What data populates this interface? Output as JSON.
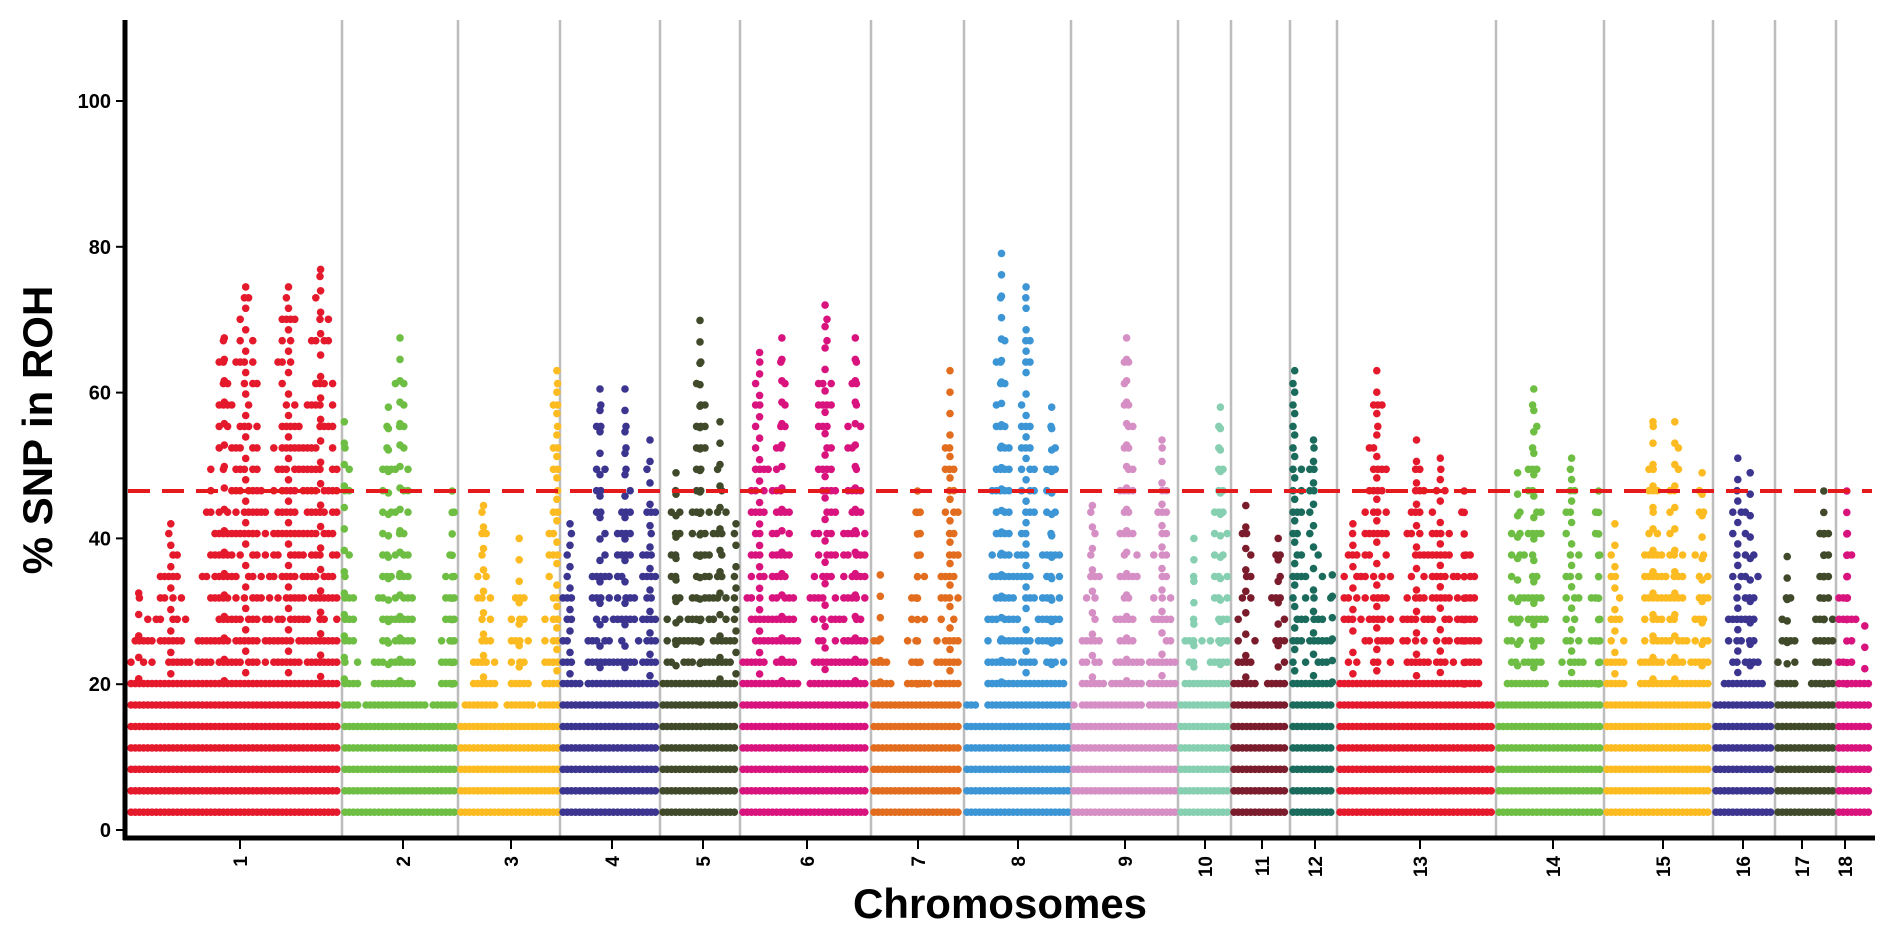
{
  "chart_data": {
    "type": "scatter",
    "title": "",
    "xlabel": "Chromosomes",
    "ylabel": "% SNP in ROH",
    "ylim": [
      0,
      110
    ],
    "yticks": [
      0,
      20,
      40,
      60,
      80,
      100
    ],
    "grid": "vertical chromosome separators only",
    "threshold": {
      "value": 46.5,
      "style": "dashed",
      "color": "#e41a1c"
    },
    "series": [
      {
        "name": "1",
        "color": "#e41a2c",
        "peaks": [
          {
            "pos": 0.05,
            "value": 32.5
          },
          {
            "pos": 0.2,
            "value": 42
          },
          {
            "pos": 0.45,
            "value": 67.5
          },
          {
            "pos": 0.55,
            "value": 74.5
          },
          {
            "pos": 0.75,
            "value": 74.5
          },
          {
            "pos": 0.9,
            "value": 76.9
          }
        ]
      },
      {
        "name": "2",
        "color": "#6fbe44",
        "peaks": [
          {
            "pos": 0.02,
            "value": 56
          },
          {
            "pos": 0.4,
            "value": 58
          },
          {
            "pos": 0.5,
            "value": 67.5
          },
          {
            "pos": 0.95,
            "value": 46.5
          }
        ]
      },
      {
        "name": "3",
        "color": "#fbbb21",
        "peaks": [
          {
            "pos": 0.25,
            "value": 44.5
          },
          {
            "pos": 0.6,
            "value": 40
          },
          {
            "pos": 0.97,
            "value": 63
          }
        ]
      },
      {
        "name": "4",
        "color": "#3b3590",
        "peaks": [
          {
            "pos": 0.1,
            "value": 42
          },
          {
            "pos": 0.4,
            "value": 60.5
          },
          {
            "pos": 0.65,
            "value": 60.5
          },
          {
            "pos": 0.9,
            "value": 53.5
          }
        ]
      },
      {
        "name": "5",
        "color": "#404a2a",
        "peaks": [
          {
            "pos": 0.2,
            "value": 49
          },
          {
            "pos": 0.5,
            "value": 69.9
          },
          {
            "pos": 0.75,
            "value": 56
          },
          {
            "pos": 0.95,
            "value": 42
          }
        ]
      },
      {
        "name": "6",
        "color": "#d9137e",
        "peaks": [
          {
            "pos": 0.15,
            "value": 65.5
          },
          {
            "pos": 0.32,
            "value": 67.5
          },
          {
            "pos": 0.65,
            "value": 72
          },
          {
            "pos": 0.88,
            "value": 67.5
          }
        ]
      },
      {
        "name": "7",
        "color": "#e26d1e",
        "peaks": [
          {
            "pos": 0.1,
            "value": 35
          },
          {
            "pos": 0.5,
            "value": 46.5
          },
          {
            "pos": 0.85,
            "value": 63
          }
        ]
      },
      {
        "name": "8",
        "color": "#3c95d4",
        "peaks": [
          {
            "pos": 0.35,
            "value": 79.1
          },
          {
            "pos": 0.58,
            "value": 74.5
          },
          {
            "pos": 0.82,
            "value": 58
          }
        ]
      },
      {
        "name": "9",
        "color": "#d68fc4",
        "peaks": [
          {
            "pos": 0.2,
            "value": 44.5
          },
          {
            "pos": 0.52,
            "value": 67.5
          },
          {
            "pos": 0.85,
            "value": 53.5
          }
        ]
      },
      {
        "name": "10",
        "color": "#86cfb1",
        "peaks": [
          {
            "pos": 0.3,
            "value": 40
          },
          {
            "pos": 0.8,
            "value": 58
          }
        ]
      },
      {
        "name": "11",
        "color": "#7a1c2c",
        "peaks": [
          {
            "pos": 0.25,
            "value": 44.5
          },
          {
            "pos": 0.8,
            "value": 40
          }
        ]
      },
      {
        "name": "12",
        "color": "#1a6b5c",
        "peaks": [
          {
            "pos": 0.1,
            "value": 63
          },
          {
            "pos": 0.5,
            "value": 53.5
          },
          {
            "pos": 0.9,
            "value": 35
          }
        ]
      },
      {
        "name": "13",
        "color": "#e41a2c",
        "peaks": [
          {
            "pos": 0.1,
            "value": 42
          },
          {
            "pos": 0.25,
            "value": 63
          },
          {
            "pos": 0.5,
            "value": 53.5
          },
          {
            "pos": 0.65,
            "value": 51
          },
          {
            "pos": 0.8,
            "value": 46.5
          }
        ]
      },
      {
        "name": "14",
        "color": "#6fbe44",
        "peaks": [
          {
            "pos": 0.2,
            "value": 49
          },
          {
            "pos": 0.35,
            "value": 60.5
          },
          {
            "pos": 0.7,
            "value": 51
          },
          {
            "pos": 0.95,
            "value": 46.5
          }
        ]
      },
      {
        "name": "15",
        "color": "#fbbb21",
        "peaks": [
          {
            "pos": 0.1,
            "value": 42
          },
          {
            "pos": 0.45,
            "value": 56
          },
          {
            "pos": 0.65,
            "value": 56
          },
          {
            "pos": 0.9,
            "value": 49
          }
        ]
      },
      {
        "name": "16",
        "color": "#3b3590",
        "peaks": [
          {
            "pos": 0.4,
            "value": 51
          },
          {
            "pos": 0.6,
            "value": 49
          }
        ]
      },
      {
        "name": "17",
        "color": "#404a2a",
        "peaks": [
          {
            "pos": 0.2,
            "value": 37.5
          },
          {
            "pos": 0.8,
            "value": 46.5
          }
        ]
      },
      {
        "name": "18",
        "color": "#d9137e",
        "peaks": [
          {
            "pos": 0.3,
            "value": 46.5
          },
          {
            "pos": 0.8,
            "value": 28
          }
        ]
      }
    ]
  }
}
